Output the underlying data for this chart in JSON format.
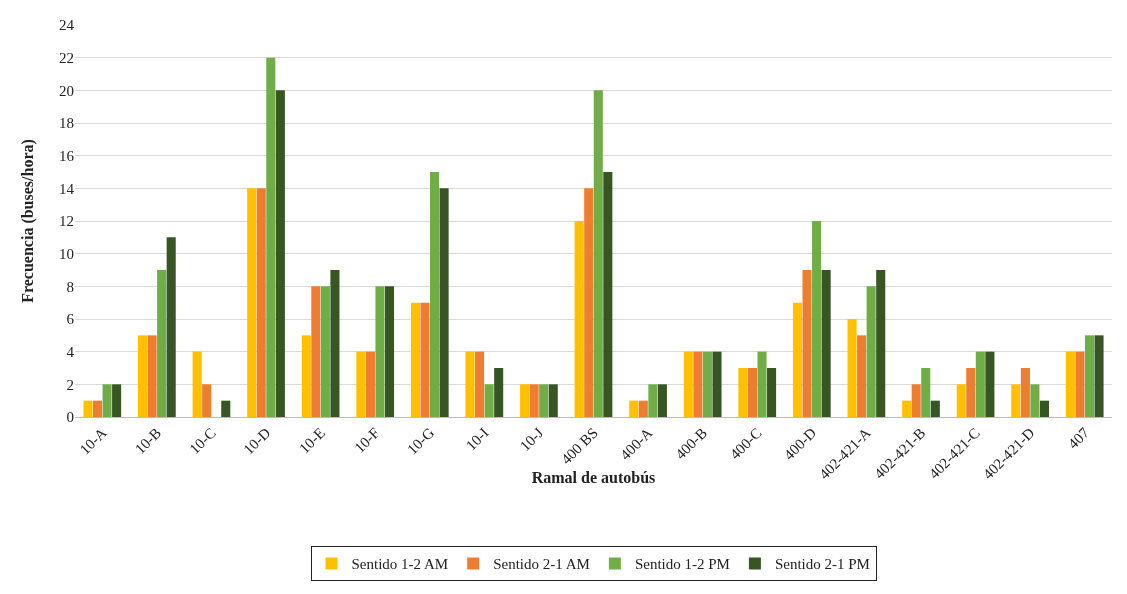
{
  "chart_data": {
    "type": "bar",
    "xlabel": "Ramal de autobús",
    "ylabel": "Frecuencia (buses/hora)",
    "categories": [
      "10-A",
      "10-B",
      "10-C",
      "10-D",
      "10-E",
      "10-F",
      "10-G",
      "10-I",
      "10-J",
      "400 BS",
      "400-A",
      "400-B",
      "400-C",
      "400-D",
      "402-421-A",
      "402-421-B",
      "402-421-C",
      "402-421-D",
      "407"
    ],
    "series": [
      {
        "name": "Sentido 1-2 AM",
        "color": "#ffc000",
        "values": [
          1,
          5,
          4,
          14,
          5,
          4,
          7,
          4,
          2,
          12,
          1,
          4,
          3,
          7,
          6,
          1,
          2,
          2,
          4
        ]
      },
      {
        "name": "Sentido 2-1 AM",
        "color": "#ed7d31",
        "values": [
          1,
          5,
          2,
          14,
          8,
          4,
          7,
          4,
          2,
          14,
          1,
          4,
          3,
          9,
          5,
          2,
          3,
          3,
          4
        ]
      },
      {
        "name": "Sentido 1-2 PM",
        "color": "#70ad47",
        "values": [
          2,
          9,
          0,
          22,
          8,
          8,
          15,
          2,
          2,
          20,
          2,
          4,
          4,
          12,
          8,
          3,
          4,
          2,
          5
        ]
      },
      {
        "name": "Sentido 2-1 PM",
        "color": "#375623",
        "values": [
          2,
          11,
          1,
          20,
          9,
          8,
          14,
          3,
          2,
          15,
          2,
          4,
          3,
          9,
          9,
          1,
          4,
          1,
          5
        ]
      }
    ],
    "ylim": [
      0,
      24
    ],
    "yticks": [
      0,
      2,
      4,
      6,
      8,
      10,
      12,
      14,
      16,
      18,
      20,
      22,
      24
    ],
    "grid": "y",
    "legend": "bottom"
  }
}
